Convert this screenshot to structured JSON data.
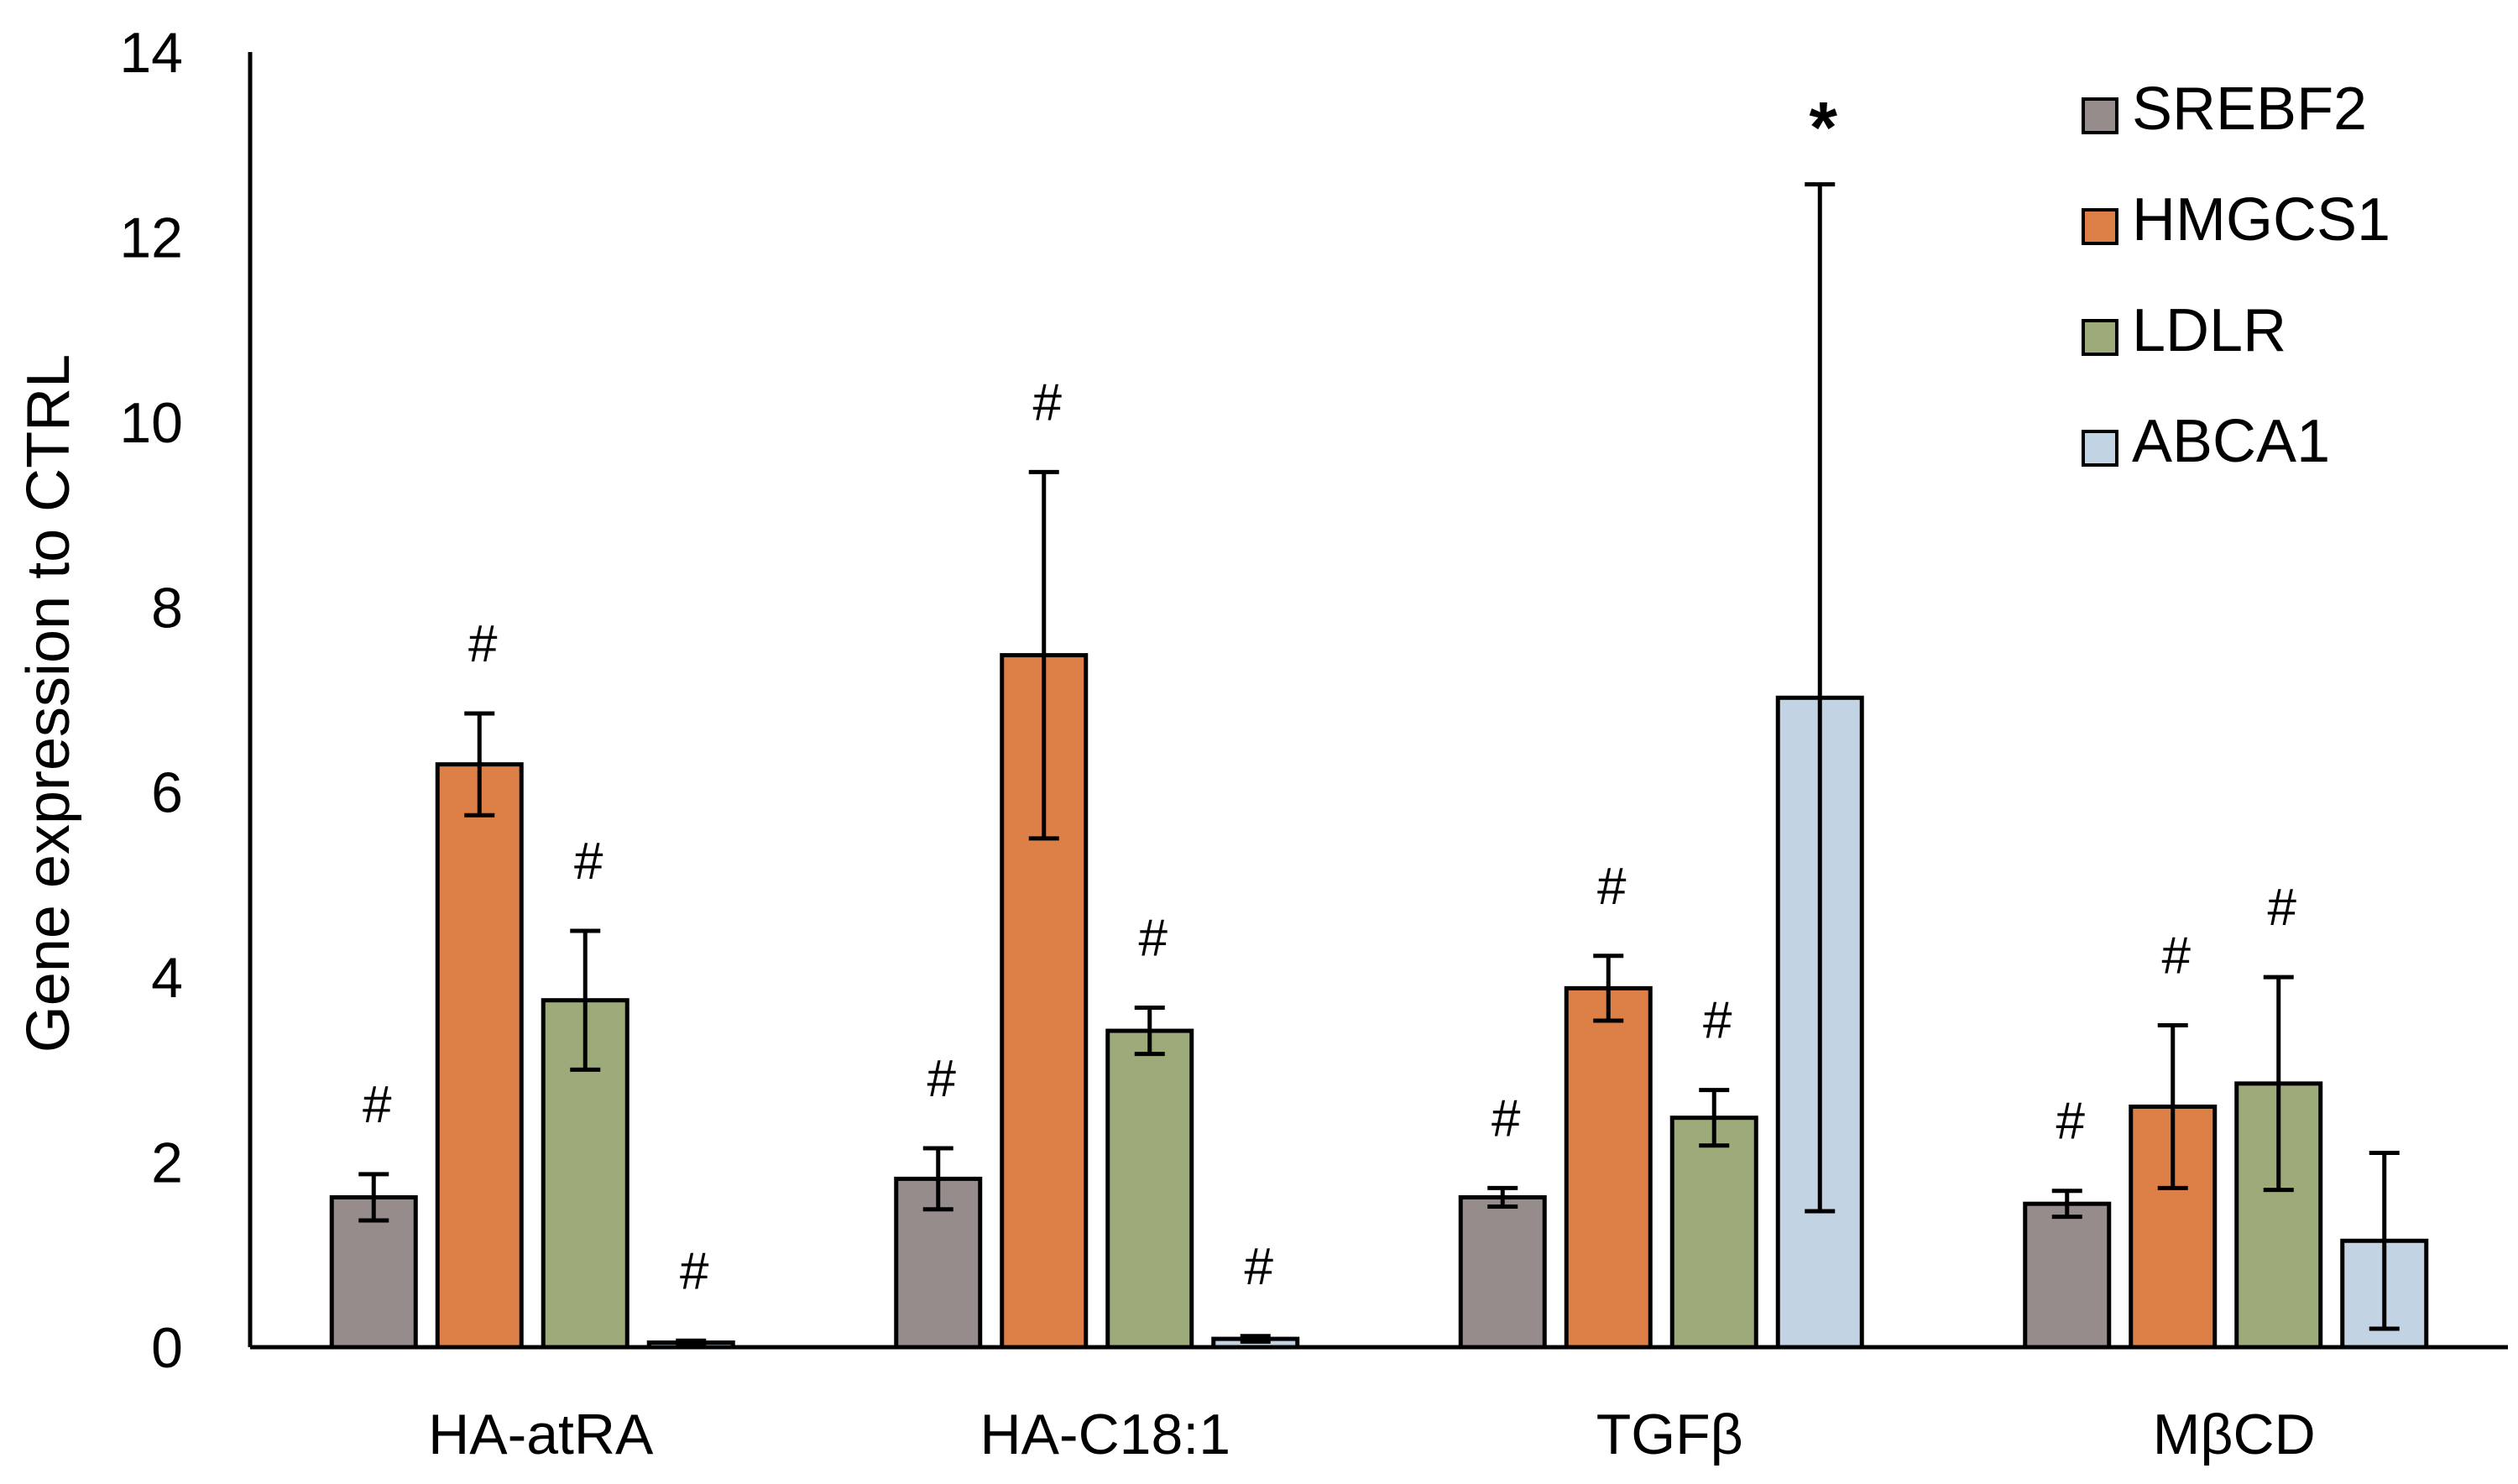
{
  "chart_data": {
    "type": "bar",
    "title": "",
    "xlabel": "",
    "ylabel": "Gene expression to CTRL",
    "ylim": [
      0,
      14
    ],
    "yticks": [
      "0",
      "2",
      "4",
      "6",
      "8",
      "10",
      "12",
      "14"
    ],
    "grid": false,
    "legend_position": "top-right",
    "categories": [
      "HA-atRA",
      "HA-C18:1",
      "TGFβ",
      "MβCD"
    ],
    "series": [
      {
        "name": "SREBF2",
        "color": "#968c8c",
        "values": [
          1.62,
          1.82,
          1.62,
          1.55
        ],
        "errors": [
          0.25,
          0.33,
          0.1,
          0.14
        ],
        "significance": [
          "#",
          "#",
          "#",
          "#"
        ]
      },
      {
        "name": "HMGCS1",
        "color": "#dd8048",
        "values": [
          6.3,
          7.48,
          3.88,
          2.6
        ],
        "errors": [
          0.55,
          1.98,
          0.35,
          0.88
        ],
        "significance": [
          "#",
          "#",
          "#",
          "#"
        ]
      },
      {
        "name": "LDLR",
        "color": "#9daa7a",
        "values": [
          3.75,
          3.42,
          2.48,
          2.85
        ],
        "errors": [
          0.75,
          0.25,
          0.3,
          1.15
        ],
        "significance": [
          "#",
          "#",
          "#",
          "#"
        ]
      },
      {
        "name": "ABCA1",
        "color": "#c2d3e4",
        "values": [
          0.05,
          0.09,
          7.02,
          1.15
        ],
        "errors": [
          0.02,
          0.03,
          5.55,
          0.95
        ],
        "significance": [
          "#",
          "#",
          "*",
          ""
        ]
      }
    ]
  }
}
